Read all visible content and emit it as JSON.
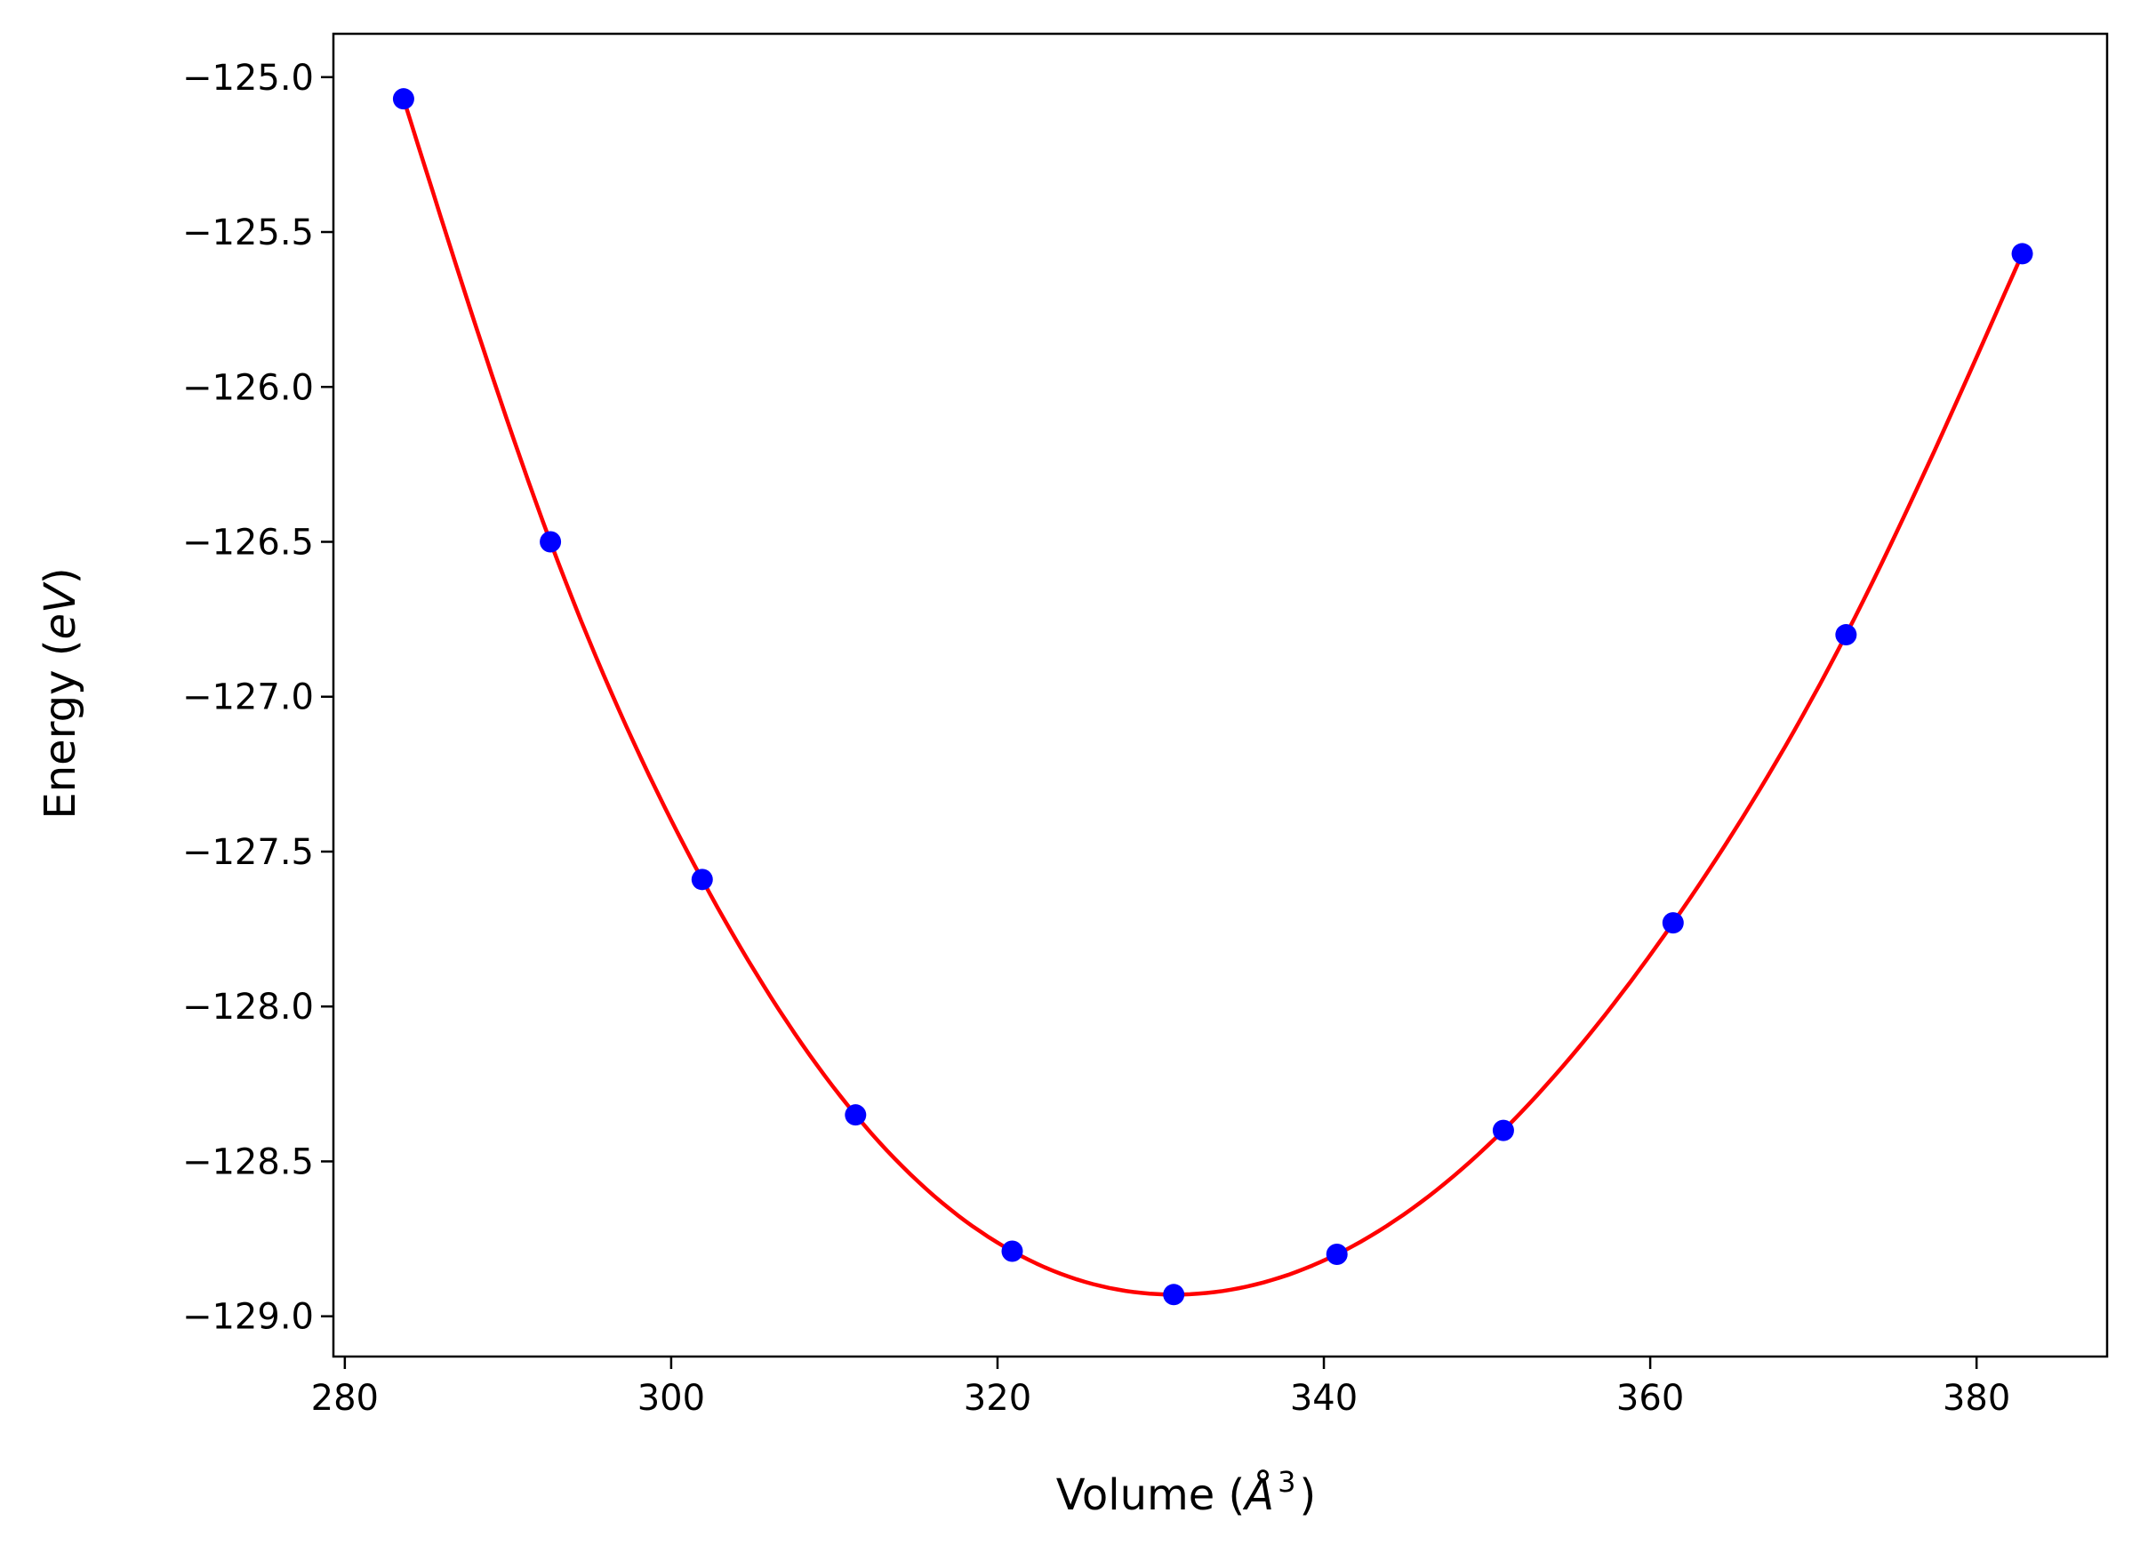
{
  "chart_data": {
    "type": "line",
    "title": "",
    "xlabel_prefix": "Volume (",
    "xlabel_sym": "Å",
    "xlabel_exp": "3",
    "xlabel_suffix": ")",
    "ylabel_prefix": "Energy (",
    "ylabel_unit": "eV",
    "ylabel_suffix": ")",
    "xlim": [
      279.3,
      388.0
    ],
    "ylim": [
      -129.13,
      -124.86
    ],
    "xticks": [
      280,
      300,
      320,
      340,
      360,
      380
    ],
    "xtick_labels": [
      "280",
      "300",
      "320",
      "340",
      "360",
      "380"
    ],
    "yticks": [
      -125.0,
      -125.5,
      -126.0,
      -126.5,
      -127.0,
      -127.5,
      -128.0,
      -128.5,
      -129.0
    ],
    "ytick_labels": [
      "−125.0",
      "−125.5",
      "−126.0",
      "−126.5",
      "−127.0",
      "−127.5",
      "−128.0",
      "−128.5",
      "−129.0"
    ],
    "grid": false,
    "series": [
      {
        "name": "data points",
        "kind": "scatter",
        "color": "#0000ff",
        "x": [
          283.6,
          292.6,
          301.9,
          311.3,
          320.9,
          330.8,
          340.8,
          351.0,
          361.4,
          372.0,
          382.8
        ],
        "y": [
          -125.07,
          -126.5,
          -127.59,
          -128.35,
          -128.79,
          -128.93,
          -128.8,
          -128.4,
          -127.73,
          -126.8,
          -125.57
        ]
      },
      {
        "name": "fit",
        "kind": "line",
        "color": "#ff0000",
        "x": [
          283.6,
          292.6,
          301.9,
          311.3,
          320.9,
          330.8,
          340.8,
          351.0,
          361.4,
          372.0,
          382.8
        ],
        "y": [
          -125.07,
          -126.5,
          -127.59,
          -128.35,
          -128.79,
          -128.93,
          -128.8,
          -128.4,
          -127.73,
          -126.8,
          -125.57
        ]
      }
    ]
  }
}
